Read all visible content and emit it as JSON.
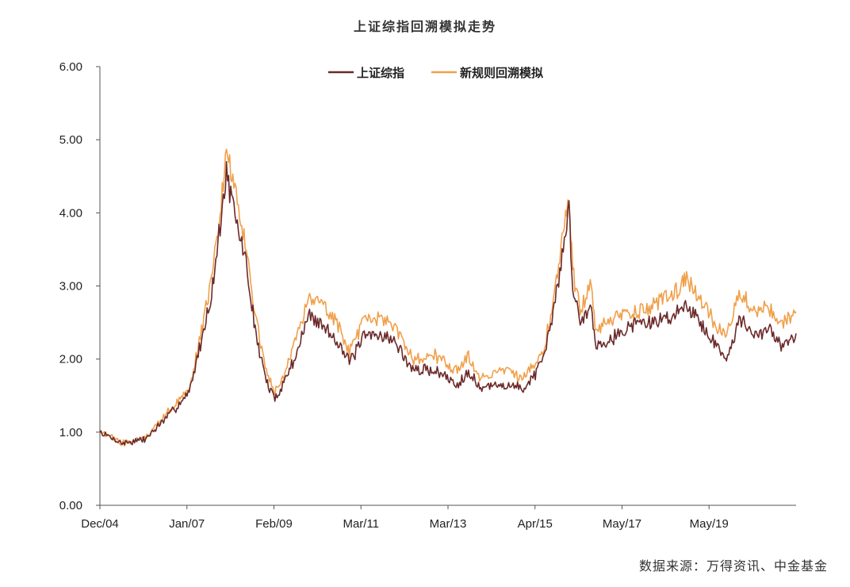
{
  "chart_data": {
    "type": "line",
    "title": "上证综指回溯模拟走势",
    "xlabel": "",
    "ylabel": "",
    "ylim": [
      0,
      6
    ],
    "yticks": [
      "0.00",
      "1.00",
      "2.00",
      "3.00",
      "4.00",
      "5.00",
      "6.00"
    ],
    "x_tick_labels": [
      "Dec/04",
      "Jan/07",
      "Feb/09",
      "Mar/11",
      "Mar/13",
      "Apr/15",
      "May/17",
      "May/19"
    ],
    "x": [
      "2004-12",
      "2005-06",
      "2005-12",
      "2006-06",
      "2006-12",
      "2007-03",
      "2007-06",
      "2007-08",
      "2007-10",
      "2007-12",
      "2008-03",
      "2008-06",
      "2008-09",
      "2008-11",
      "2009-02",
      "2009-05",
      "2009-08",
      "2009-12",
      "2010-04",
      "2010-07",
      "2010-11",
      "2011-03",
      "2011-07",
      "2011-12",
      "2012-06",
      "2012-12",
      "2013-03",
      "2013-06",
      "2013-12",
      "2014-06",
      "2014-11",
      "2015-02",
      "2015-06",
      "2015-07",
      "2015-09",
      "2015-12",
      "2016-01",
      "2016-06",
      "2016-12",
      "2017-05",
      "2017-12",
      "2018-01",
      "2018-06",
      "2018-12",
      "2019-04",
      "2019-08",
      "2019-12",
      "2020-03",
      "2020-07"
    ],
    "grid": false,
    "legend_position": "top-center",
    "series": [
      {
        "name": "上证综指",
        "color": "#6b2a2a",
        "values": [
          1.0,
          0.85,
          0.9,
          1.2,
          1.55,
          2.2,
          2.9,
          3.7,
          4.55,
          4.0,
          3.4,
          2.3,
          1.65,
          1.45,
          1.75,
          2.1,
          2.6,
          2.45,
          2.25,
          1.95,
          2.3,
          2.35,
          2.25,
          1.85,
          1.85,
          1.65,
          1.85,
          1.6,
          1.65,
          1.6,
          1.95,
          2.7,
          4.05,
          3.0,
          2.5,
          2.75,
          2.2,
          2.3,
          2.5,
          2.5,
          2.65,
          2.8,
          2.45,
          2.0,
          2.55,
          2.3,
          2.4,
          2.2,
          2.35
        ]
      },
      {
        "name": "新规则回溯模拟",
        "color": "#f0a04b",
        "values": [
          1.0,
          0.85,
          0.92,
          1.25,
          1.6,
          2.3,
          3.1,
          3.9,
          4.85,
          4.4,
          3.6,
          2.5,
          1.75,
          1.55,
          1.85,
          2.3,
          2.85,
          2.75,
          2.45,
          2.1,
          2.5,
          2.55,
          2.45,
          2.0,
          2.05,
          1.85,
          2.05,
          1.75,
          1.85,
          1.75,
          2.1,
          2.85,
          4.25,
          3.2,
          2.7,
          3.0,
          2.4,
          2.55,
          2.65,
          2.75,
          2.95,
          3.15,
          2.75,
          2.3,
          2.9,
          2.65,
          2.7,
          2.5,
          2.65
        ]
      }
    ]
  },
  "source_note": "数据来源：万得资讯、中金基金"
}
